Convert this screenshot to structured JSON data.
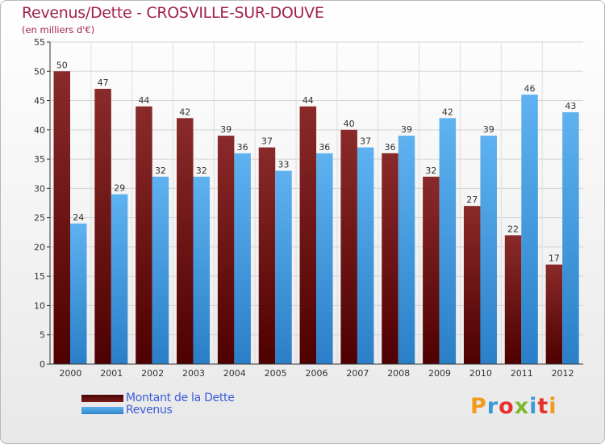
{
  "chart_data": {
    "type": "bar",
    "title": "Revenus/Dette - CROSVILLE-SUR-DOUVE",
    "subtitle": "(en milliers d'€)",
    "categories": [
      "2000",
      "2001",
      "2002",
      "2003",
      "2004",
      "2005",
      "2006",
      "2007",
      "2008",
      "2009",
      "2010",
      "2011",
      "2012"
    ],
    "series": [
      {
        "name": "Montant de la Dette",
        "color": "#6b0f0f",
        "values": [
          50,
          47,
          44,
          42,
          39,
          37,
          44,
          40,
          36,
          32,
          27,
          22,
          17
        ]
      },
      {
        "name": "Revenus",
        "color": "#3c95dc",
        "values": [
          24,
          29,
          32,
          32,
          36,
          33,
          36,
          37,
          39,
          42,
          39,
          46,
          43
        ]
      }
    ],
    "ylim": [
      0,
      55
    ],
    "yticks": [
      0,
      5,
      10,
      15,
      20,
      25,
      30,
      35,
      40,
      45,
      50,
      55
    ],
    "grid": true,
    "xlabel": "",
    "ylabel": "",
    "legend_position": "bottom-left"
  },
  "legend": {
    "items": [
      {
        "label": "Montant de la Dette"
      },
      {
        "label": "Revenus"
      }
    ]
  },
  "logo": {
    "text": "Proxiti",
    "colors": [
      "#f39a1b",
      "#3a9ad9",
      "#e5322d",
      "#7cb82f",
      "#3a9ad9",
      "#e5322d",
      "#f39a1b"
    ]
  }
}
